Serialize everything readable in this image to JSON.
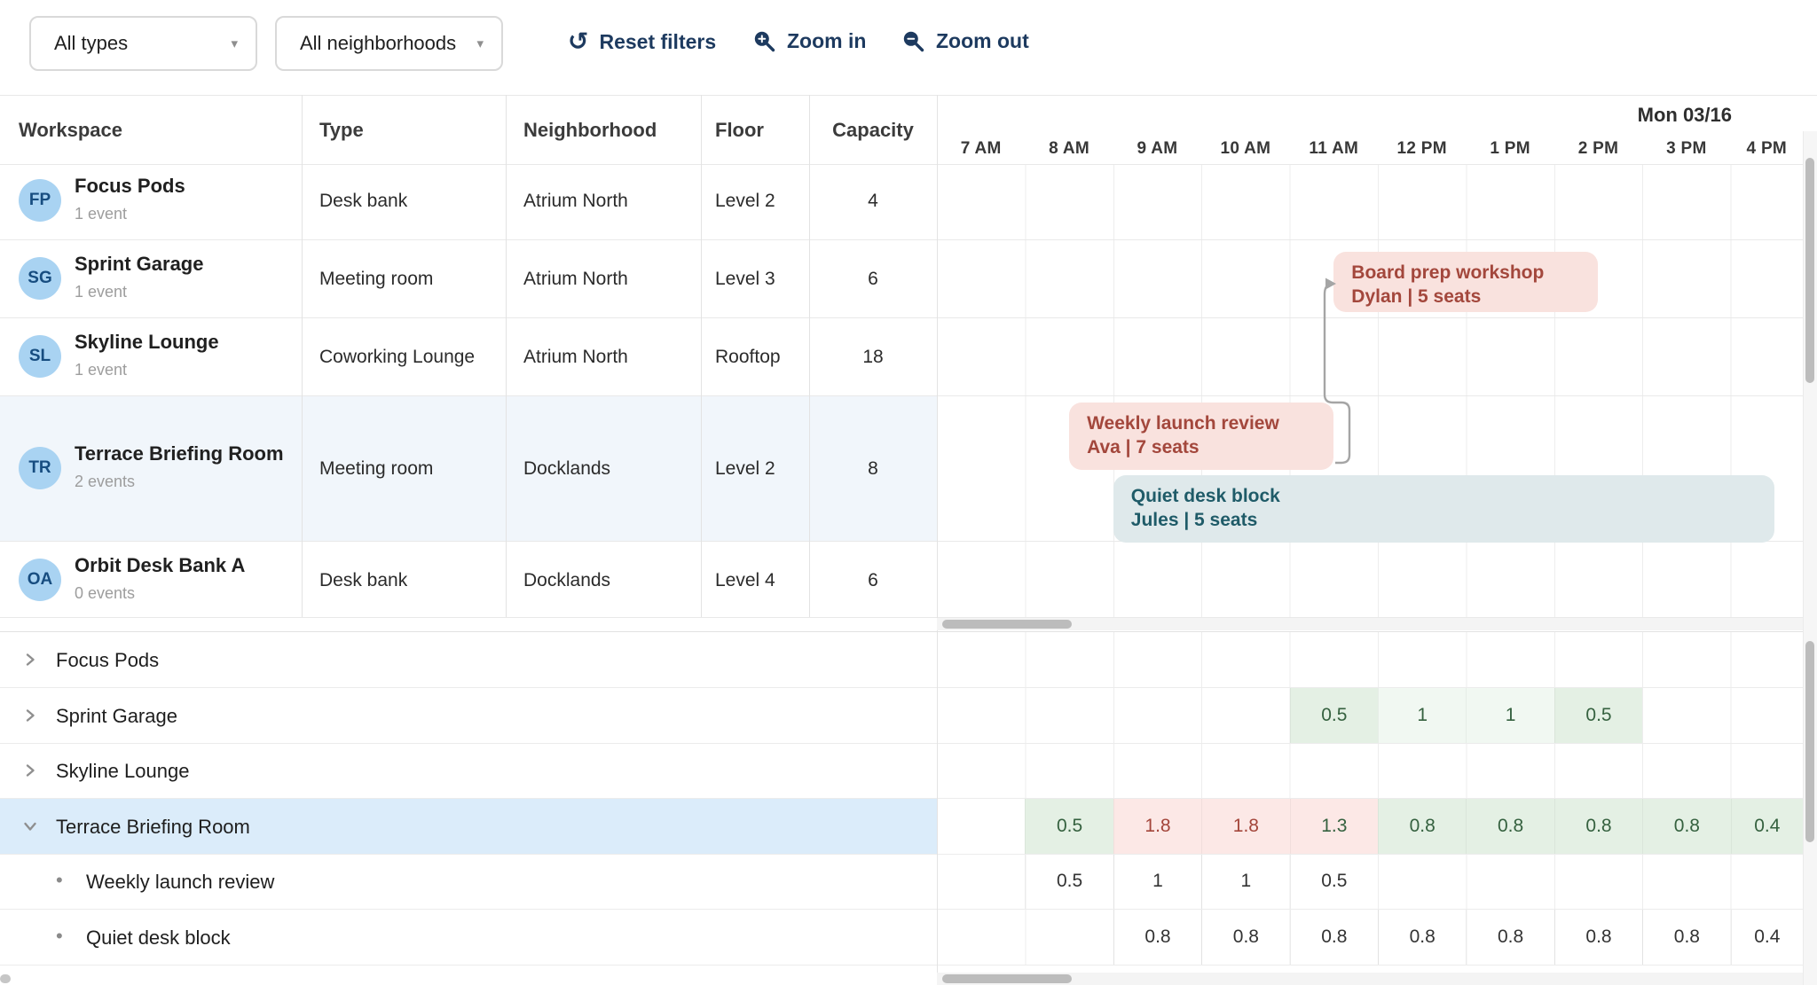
{
  "toolbar": {
    "type_filter": {
      "value": "All types"
    },
    "neighborhood_filter": {
      "value": "All neighborhoods"
    },
    "reset_label": "Reset filters",
    "zoom_in_label": "Zoom in",
    "zoom_out_label": "Zoom out"
  },
  "table": {
    "columns": [
      "Workspace",
      "Type",
      "Neighborhood",
      "Floor",
      "Capacity"
    ],
    "rows": [
      {
        "initials": "FP",
        "name": "Focus Pods",
        "events": "1 event",
        "type": "Desk bank",
        "neighborhood": "Atrium North",
        "floor": "Level 2",
        "capacity": "4",
        "selected": false
      },
      {
        "initials": "SG",
        "name": "Sprint Garage",
        "events": "1 event",
        "type": "Meeting room",
        "neighborhood": "Atrium North",
        "floor": "Level 3",
        "capacity": "6",
        "selected": false
      },
      {
        "initials": "SL",
        "name": "Skyline Lounge",
        "events": "1 event",
        "type": "Coworking Lounge",
        "neighborhood": "Atrium North",
        "floor": "Rooftop",
        "capacity": "18",
        "selected": false
      },
      {
        "initials": "TR",
        "name": "Terrace Briefing Room",
        "events": "2 events",
        "type": "Meeting room",
        "neighborhood": "Docklands",
        "floor": "Level 2",
        "capacity": "8",
        "selected": true
      },
      {
        "initials": "OA",
        "name": "Orbit Desk Bank A",
        "events": "0 events",
        "type": "Desk bank",
        "neighborhood": "Docklands",
        "floor": "Level 4",
        "capacity": "6",
        "selected": false
      }
    ]
  },
  "timeline": {
    "day_label": "Mon 03/16",
    "hours": [
      "7 AM",
      "8 AM",
      "9 AM",
      "10 AM",
      "11 AM",
      "12 PM",
      "1 PM",
      "2 PM",
      "3 PM",
      "4 PM"
    ],
    "events": [
      {
        "title": "Board prep workshop",
        "subtitle": "Dylan | 5 seats",
        "row": "Sprint Garage",
        "start": 11.5,
        "end": 14.5,
        "style": "pink"
      },
      {
        "title": "Weekly launch review",
        "subtitle": "Ava | 7 seats",
        "row": "Terrace Briefing Room",
        "start": 8.5,
        "end": 11.5,
        "style": "pink"
      },
      {
        "title": "Quiet desk block",
        "subtitle": "Jules | 5 seats",
        "row": "Terrace Briefing Room",
        "start": 9.0,
        "end": 16.5,
        "style": "teal"
      }
    ]
  },
  "utilization": {
    "groups": [
      {
        "label": "Focus Pods",
        "expanded": false,
        "selected": false,
        "cells": []
      },
      {
        "label": "Sprint Garage",
        "expanded": false,
        "selected": false,
        "cells": [
          {
            "hour": "11 AM",
            "value": "0.5",
            "bg": "green",
            "fg": "green"
          },
          {
            "hour": "12 PM",
            "value": "1",
            "bg": "green-light",
            "fg": "green"
          },
          {
            "hour": "1 PM",
            "value": "1",
            "bg": "green-light",
            "fg": "green"
          },
          {
            "hour": "2 PM",
            "value": "0.5",
            "bg": "green",
            "fg": "green"
          }
        ]
      },
      {
        "label": "Skyline Lounge",
        "expanded": false,
        "selected": false,
        "cells": []
      },
      {
        "label": "Terrace Briefing Room",
        "expanded": true,
        "selected": true,
        "cells": [
          {
            "hour": "8 AM",
            "value": "0.5",
            "bg": "green",
            "fg": "green"
          },
          {
            "hour": "9 AM",
            "value": "1.8",
            "bg": "pink",
            "fg": "red"
          },
          {
            "hour": "10 AM",
            "value": "1.8",
            "bg": "pink",
            "fg": "red"
          },
          {
            "hour": "11 AM",
            "value": "1.3",
            "bg": "pink",
            "fg": "green"
          },
          {
            "hour": "12 PM",
            "value": "0.8",
            "bg": "green",
            "fg": "green"
          },
          {
            "hour": "1 PM",
            "value": "0.8",
            "bg": "green",
            "fg": "green"
          },
          {
            "hour": "2 PM",
            "value": "0.8",
            "bg": "green",
            "fg": "green"
          },
          {
            "hour": "3 PM",
            "value": "0.8",
            "bg": "green",
            "fg": "green"
          },
          {
            "hour": "4 PM",
            "value": "0.4",
            "bg": "green",
            "fg": "green"
          }
        ],
        "children": [
          {
            "label": "Weekly launch review",
            "cells": [
              {
                "hour": "8 AM",
                "value": "0.5",
                "bg": "none",
                "fg": "dark"
              },
              {
                "hour": "9 AM",
                "value": "1",
                "bg": "none",
                "fg": "dark"
              },
              {
                "hour": "10 AM",
                "value": "1",
                "bg": "none",
                "fg": "dark"
              },
              {
                "hour": "11 AM",
                "value": "0.5",
                "bg": "none",
                "fg": "dark"
              }
            ]
          },
          {
            "label": "Quiet desk block",
            "cells": [
              {
                "hour": "9 AM",
                "value": "0.8",
                "bg": "none",
                "fg": "dark"
              },
              {
                "hour": "10 AM",
                "value": "0.8",
                "bg": "none",
                "fg": "dark"
              },
              {
                "hour": "11 AM",
                "value": "0.8",
                "bg": "none",
                "fg": "dark"
              },
              {
                "hour": "12 PM",
                "value": "0.8",
                "bg": "none",
                "fg": "dark"
              },
              {
                "hour": "1 PM",
                "value": "0.8",
                "bg": "none",
                "fg": "dark"
              },
              {
                "hour": "2 PM",
                "value": "0.8",
                "bg": "none",
                "fg": "dark"
              },
              {
                "hour": "3 PM",
                "value": "0.8",
                "bg": "none",
                "fg": "dark"
              },
              {
                "hour": "4 PM",
                "value": "0.4",
                "bg": "none",
                "fg": "dark"
              }
            ]
          }
        ]
      }
    ]
  },
  "colors": {
    "accent_navy": "#1d3a5f",
    "event_pink_bg": "#f9e2de",
    "event_pink_text": "#a3473c",
    "event_teal_bg": "#dfe9eb",
    "event_teal_text": "#1f5b68",
    "cell_green_bg": "#e4f0e4",
    "cell_green_light_bg": "#f1f8f2",
    "cell_green_text": "#35613f",
    "cell_pink_bg": "#fce8e6",
    "cell_red_text": "#a3453a",
    "selected_row_blue": "#dbecfa",
    "hovered_row_blue": "#f1f6fb",
    "avatar_bg": "#a9d3f2",
    "avatar_text": "#174d80"
  }
}
